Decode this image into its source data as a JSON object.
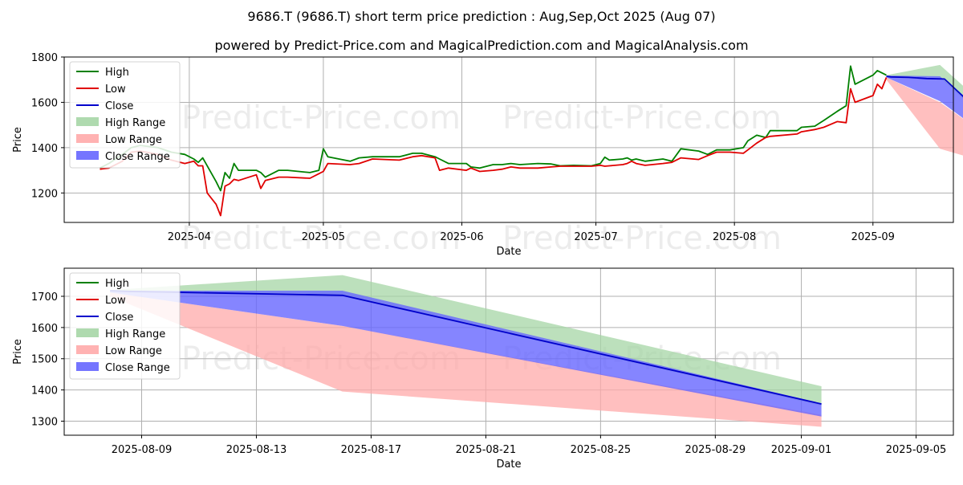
{
  "title_line1": "9686.T (9686.T) short term price prediction : Aug,Sep,Oct 2025 (Aug 07)",
  "title_line2": "powered by Predict-Price.com and MagicalPrediction.com and MagicalAnalysis.com",
  "watermark": "Predict-Price.com",
  "colors": {
    "high": "#008000",
    "low": "#e00000",
    "close": "#0000cc",
    "high_range": "#a6d6a6",
    "low_range": "#ffaaaa",
    "close_range": "#6666ff",
    "grid": "#b0b0b0"
  },
  "chart_data": [
    {
      "type": "line",
      "xlabel": "Date",
      "ylabel": "Price",
      "yticks": [
        1200,
        1400,
        1600,
        1800
      ],
      "xticks": [
        "2025-04",
        "2025-05",
        "2025-06",
        "2025-07",
        "2025-08",
        "2025-09"
      ],
      "xlim": [
        "2025-03-04",
        "2025-09-19"
      ],
      "ylim": [
        1070,
        1800
      ],
      "grid": true,
      "legend_placement": "top-left",
      "legend": [
        "High",
        "Low",
        "Close",
        "High Range",
        "Low Range",
        "Close Range"
      ],
      "series": [
        {
          "name": "High",
          "points": [
            [
              "2025-03-12",
              1310
            ],
            [
              "2025-03-14",
              1330
            ],
            [
              "2025-03-17",
              1370
            ],
            [
              "2025-03-19",
              1400
            ],
            [
              "2025-03-21",
              1410
            ],
            [
              "2025-03-25",
              1400
            ],
            [
              "2025-03-28",
              1380
            ],
            [
              "2025-03-31",
              1370
            ],
            [
              "2025-04-02",
              1350
            ],
            [
              "2025-04-03",
              1335
            ],
            [
              "2025-04-04",
              1355
            ],
            [
              "2025-04-07",
              1250
            ],
            [
              "2025-04-08",
              1210
            ],
            [
              "2025-04-09",
              1290
            ],
            [
              "2025-04-10",
              1265
            ],
            [
              "2025-04-11",
              1330
            ],
            [
              "2025-04-12",
              1300
            ],
            [
              "2025-04-16",
              1300
            ],
            [
              "2025-04-17",
              1290
            ],
            [
              "2025-04-18",
              1270
            ],
            [
              "2025-04-21",
              1300
            ],
            [
              "2025-04-23",
              1300
            ],
            [
              "2025-04-28",
              1290
            ],
            [
              "2025-04-30",
              1300
            ],
            [
              "2025-05-01",
              1395
            ],
            [
              "2025-05-02",
              1360
            ],
            [
              "2025-05-07",
              1340
            ],
            [
              "2025-05-09",
              1355
            ],
            [
              "2025-05-12",
              1360
            ],
            [
              "2025-05-18",
              1360
            ],
            [
              "2025-05-21",
              1375
            ],
            [
              "2025-05-23",
              1375
            ],
            [
              "2025-05-26",
              1360
            ],
            [
              "2025-05-27",
              1350
            ],
            [
              "2025-05-29",
              1330
            ],
            [
              "2025-06-02",
              1330
            ],
            [
              "2025-06-03",
              1315
            ],
            [
              "2025-06-05",
              1310
            ],
            [
              "2025-06-08",
              1325
            ],
            [
              "2025-06-10",
              1325
            ],
            [
              "2025-06-12",
              1330
            ],
            [
              "2025-06-14",
              1325
            ],
            [
              "2025-06-18",
              1330
            ],
            [
              "2025-06-21",
              1328
            ],
            [
              "2025-06-23",
              1320
            ],
            [
              "2025-06-26",
              1322
            ],
            [
              "2025-06-30",
              1320
            ],
            [
              "2025-07-02",
              1330
            ],
            [
              "2025-07-03",
              1358
            ],
            [
              "2025-07-04",
              1345
            ],
            [
              "2025-07-07",
              1350
            ],
            [
              "2025-07-08",
              1355
            ],
            [
              "2025-07-09",
              1345
            ],
            [
              "2025-07-10",
              1350
            ],
            [
              "2025-07-12",
              1340
            ],
            [
              "2025-07-16",
              1350
            ],
            [
              "2025-07-18",
              1340
            ],
            [
              "2025-07-20",
              1395
            ],
            [
              "2025-07-24",
              1385
            ],
            [
              "2025-07-26",
              1370
            ],
            [
              "2025-07-28",
              1390
            ],
            [
              "2025-07-31",
              1390
            ],
            [
              "2025-08-03",
              1400
            ],
            [
              "2025-08-04",
              1430
            ],
            [
              "2025-08-06",
              1455
            ],
            [
              "2025-08-08",
              1445
            ],
            [
              "2025-08-09",
              1475
            ],
            [
              "2025-08-15",
              1475
            ],
            [
              "2025-08-16",
              1490
            ],
            [
              "2025-08-19",
              1495
            ],
            [
              "2025-08-21",
              1520
            ],
            [
              "2025-08-24",
              1560
            ],
            [
              "2025-08-26",
              1585
            ],
            [
              "2025-08-27",
              1760
            ],
            [
              "2025-08-28",
              1680
            ],
            [
              "2025-09-01",
              1720
            ],
            [
              "2025-09-02",
              1740
            ],
            [
              "2025-09-04",
              1720
            ]
          ]
        },
        {
          "name": "Low",
          "points": [
            [
              "2025-03-12",
              1305
            ],
            [
              "2025-03-14",
              1310
            ],
            [
              "2025-03-17",
              1340
            ],
            [
              "2025-03-19",
              1380
            ],
            [
              "2025-03-21",
              1385
            ],
            [
              "2025-03-25",
              1370
            ],
            [
              "2025-03-28",
              1345
            ],
            [
              "2025-03-31",
              1330
            ],
            [
              "2025-04-02",
              1340
            ],
            [
              "2025-04-03",
              1320
            ],
            [
              "2025-04-04",
              1320
            ],
            [
              "2025-04-05",
              1200
            ],
            [
              "2025-04-07",
              1150
            ],
            [
              "2025-04-08",
              1100
            ],
            [
              "2025-04-09",
              1230
            ],
            [
              "2025-04-10",
              1240
            ],
            [
              "2025-04-11",
              1260
            ],
            [
              "2025-04-12",
              1255
            ],
            [
              "2025-04-16",
              1280
            ],
            [
              "2025-04-17",
              1220
            ],
            [
              "2025-04-18",
              1255
            ],
            [
              "2025-04-21",
              1270
            ],
            [
              "2025-04-23",
              1270
            ],
            [
              "2025-04-28",
              1265
            ],
            [
              "2025-04-30",
              1285
            ],
            [
              "2025-05-01",
              1295
            ],
            [
              "2025-05-02",
              1330
            ],
            [
              "2025-05-07",
              1325
            ],
            [
              "2025-05-09",
              1330
            ],
            [
              "2025-05-12",
              1350
            ],
            [
              "2025-05-18",
              1345
            ],
            [
              "2025-05-21",
              1360
            ],
            [
              "2025-05-23",
              1365
            ],
            [
              "2025-05-26",
              1355
            ],
            [
              "2025-05-27",
              1300
            ],
            [
              "2025-05-29",
              1310
            ],
            [
              "2025-06-02",
              1300
            ],
            [
              "2025-06-03",
              1310
            ],
            [
              "2025-06-05",
              1295
            ],
            [
              "2025-06-08",
              1300
            ],
            [
              "2025-06-10",
              1305
            ],
            [
              "2025-06-12",
              1315
            ],
            [
              "2025-06-14",
              1310
            ],
            [
              "2025-06-18",
              1310
            ],
            [
              "2025-06-21",
              1315
            ],
            [
              "2025-06-23",
              1318
            ],
            [
              "2025-06-26",
              1318
            ],
            [
              "2025-06-30",
              1318
            ],
            [
              "2025-07-02",
              1322
            ],
            [
              "2025-07-03",
              1318
            ],
            [
              "2025-07-04",
              1320
            ],
            [
              "2025-07-07",
              1325
            ],
            [
              "2025-07-08",
              1330
            ],
            [
              "2025-07-09",
              1340
            ],
            [
              "2025-07-10",
              1330
            ],
            [
              "2025-07-12",
              1322
            ],
            [
              "2025-07-16",
              1330
            ],
            [
              "2025-07-18",
              1335
            ],
            [
              "2025-07-20",
              1355
            ],
            [
              "2025-07-24",
              1348
            ],
            [
              "2025-07-26",
              1365
            ],
            [
              "2025-07-28",
              1380
            ],
            [
              "2025-07-31",
              1380
            ],
            [
              "2025-08-03",
              1375
            ],
            [
              "2025-08-04",
              1390
            ],
            [
              "2025-08-06",
              1420
            ],
            [
              "2025-08-08",
              1445
            ],
            [
              "2025-08-09",
              1450
            ],
            [
              "2025-08-15",
              1460
            ],
            [
              "2025-08-16",
              1470
            ],
            [
              "2025-08-19",
              1480
            ],
            [
              "2025-08-21",
              1490
            ],
            [
              "2025-08-24",
              1515
            ],
            [
              "2025-08-26",
              1510
            ],
            [
              "2025-08-27",
              1660
            ],
            [
              "2025-08-28",
              1600
            ],
            [
              "2025-09-01",
              1630
            ],
            [
              "2025-09-02",
              1680
            ],
            [
              "2025-09-03",
              1660
            ],
            [
              "2025-09-04",
              1710
            ]
          ]
        },
        {
          "name": "Close",
          "points": [
            [
              "2025-09-04",
              1715
            ],
            [
              "2025-09-05",
              1712
            ],
            [
              "2025-09-09",
              1710
            ],
            [
              "2025-09-13",
              1705
            ],
            [
              "2025-09-17",
              1703
            ],
            [
              "2025-10-06",
              1355
            ]
          ]
        }
      ],
      "ranges": [
        {
          "name": "High Range",
          "x": [
            "2025-09-04",
            "2025-09-16",
            "2025-10-06"
          ],
          "upper": [
            1720,
            1765,
            1410
          ],
          "lower": [
            1715,
            1710,
            1350
          ]
        },
        {
          "name": "Low Range",
          "x": [
            "2025-09-04",
            "2025-09-16",
            "2025-10-06"
          ],
          "upper": [
            1710,
            1600,
            1320
          ],
          "lower": [
            1700,
            1395,
            1280
          ]
        },
        {
          "name": "Close Range",
          "x": [
            "2025-09-04",
            "2025-09-16",
            "2025-10-06"
          ],
          "upper": [
            1718,
            1715,
            1355
          ],
          "lower": [
            1710,
            1605,
            1315
          ]
        }
      ]
    },
    {
      "type": "line",
      "xlabel": "Date",
      "ylabel": "Price",
      "yticks": [
        1300,
        1400,
        1500,
        1600,
        1700
      ],
      "xticks": [
        "2025-08-09",
        "2025-08-13",
        "2025-08-17",
        "2025-08-21",
        "2025-08-25",
        "2025-08-29",
        "2025-09-01",
        "2025-09-05"
      ],
      "ylim": [
        1255,
        1790
      ],
      "grid": true,
      "legend_placement": "top-left",
      "legend": [
        "High",
        "Low",
        "Close",
        "High Range",
        "Low Range",
        "Close Range"
      ],
      "series": [
        {
          "name": "Close",
          "points": [
            [
              -1.1,
              1718
            ],
            [
              -0.5,
              1716
            ],
            [
              7.0,
              1703
            ],
            [
              23.7,
              1355
            ]
          ]
        }
      ],
      "ranges": [
        {
          "name": "High Range",
          "x": [
            -1.1,
            7.0,
            23.7
          ],
          "upper": [
            1720,
            1768,
            1412
          ],
          "lower": [
            1712,
            1700,
            1350
          ]
        },
        {
          "name": "Low Range",
          "x": [
            -1.1,
            7.0,
            23.7
          ],
          "upper": [
            1712,
            1605,
            1320
          ],
          "lower": [
            1700,
            1395,
            1282
          ]
        },
        {
          "name": "Close Range",
          "x": [
            -1.1,
            7.0,
            23.7
          ],
          "upper": [
            1718,
            1718,
            1357
          ],
          "lower": [
            1712,
            1605,
            1315
          ]
        }
      ]
    }
  ]
}
